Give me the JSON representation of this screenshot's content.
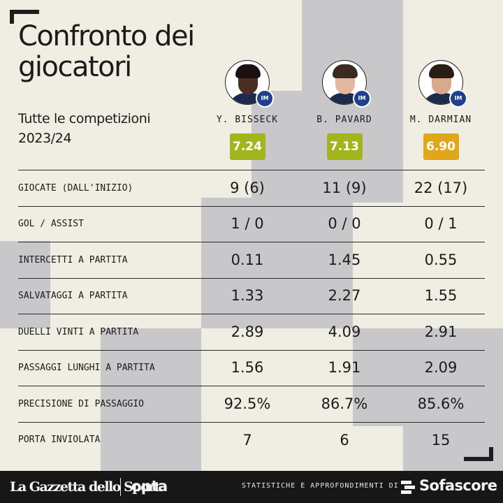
{
  "title": "Confronto dei giocatori",
  "subtitle": "Tutte le competizioni 2023/24",
  "colors": {
    "background": "#f0ede2",
    "pattern": "#c8c8cb",
    "dark": "#1d1d1d",
    "rating_green": "#a3b51d",
    "rating_orange": "#e0a718"
  },
  "players": [
    {
      "name": "Y. BISSECK",
      "rating": "7.24",
      "rating_color": "#a3b51d",
      "avatar_icon": "player-photo-icon",
      "club_icon": "inter-crest-icon",
      "club_abbr": "IM"
    },
    {
      "name": "B. PAVARD",
      "rating": "7.13",
      "rating_color": "#a3b51d",
      "avatar_icon": "player-photo-icon",
      "club_icon": "inter-crest-icon",
      "club_abbr": "IM"
    },
    {
      "name": "M. DARMIAN",
      "rating": "6.90",
      "rating_color": "#e0a718",
      "avatar_icon": "player-photo-icon",
      "club_icon": "inter-crest-icon",
      "club_abbr": "IM"
    }
  ],
  "rows": [
    {
      "label": "GIOCATE (DALL'INIZIO)",
      "values": [
        "9 (6)",
        "11 (9)",
        "22 (17)"
      ]
    },
    {
      "label": "GOL / ASSIST",
      "values": [
        "1 / 0",
        "0 / 0",
        "0 / 1"
      ]
    },
    {
      "label": "INTERCETTI A PARTITA",
      "values": [
        "0.11",
        "1.45",
        "0.55"
      ]
    },
    {
      "label": "SALVATAGGI A PARTITA",
      "values": [
        "1.33",
        "2.27",
        "1.55"
      ]
    },
    {
      "label": "DUELLI VINTI A PARTITA",
      "values": [
        "2.89",
        "4.09",
        "2.91"
      ]
    },
    {
      "label": "PASSAGGI LUNGHI A PARTITA",
      "values": [
        "1.56",
        "1.91",
        "2.09"
      ]
    },
    {
      "label": "PRECISIONE DI PASSAGGIO",
      "values": [
        "92.5%",
        "86.7%",
        "85.6%"
      ]
    },
    {
      "label": "PORTA INVIOLATA",
      "values": [
        "7",
        "6",
        "15"
      ]
    }
  ],
  "footer": {
    "gazzetta_logo": "La Gazzetta dello Sport",
    "opta_logo": "opta",
    "note": "STATISTICHE E APPROFONDIMENTI DI",
    "sofascore_logo": "Sofascore",
    "sofascore_icon": "sofascore-icon"
  }
}
